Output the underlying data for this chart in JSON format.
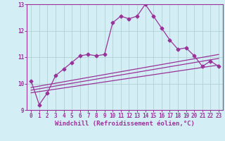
{
  "background_color": "#d4eef5",
  "grid_color": "#aacccc",
  "line_color": "#993399",
  "xlabel": "Windchill (Refroidissement éolien,°C)",
  "xlim": [
    -0.5,
    23.5
  ],
  "ylim": [
    9,
    13
  ],
  "yticks": [
    9,
    10,
    11,
    12,
    13
  ],
  "xticks": [
    0,
    1,
    2,
    3,
    4,
    5,
    6,
    7,
    8,
    9,
    10,
    11,
    12,
    13,
    14,
    15,
    16,
    17,
    18,
    19,
    20,
    21,
    22,
    23
  ],
  "main_x": [
    0,
    1,
    2,
    3,
    4,
    5,
    6,
    7,
    8,
    9,
    10,
    11,
    12,
    13,
    14,
    15,
    16,
    17,
    18,
    19,
    20,
    21,
    22,
    23
  ],
  "main_y": [
    10.1,
    9.2,
    9.65,
    10.3,
    10.55,
    10.8,
    11.05,
    11.1,
    11.05,
    11.1,
    12.3,
    12.55,
    12.45,
    12.55,
    13.0,
    12.55,
    12.1,
    11.65,
    11.3,
    11.35,
    11.05,
    10.65,
    10.85,
    10.65
  ],
  "line1_x": [
    0,
    23
  ],
  "line1_y": [
    9.65,
    10.7
  ],
  "line2_x": [
    0,
    23
  ],
  "line2_y": [
    9.75,
    10.95
  ],
  "line3_x": [
    0,
    23
  ],
  "line3_y": [
    9.85,
    11.1
  ],
  "marker": "D",
  "marker_size": 2.5,
  "linewidth": 0.9,
  "tick_fontsize": 5.5,
  "xlabel_fontsize": 6.5
}
